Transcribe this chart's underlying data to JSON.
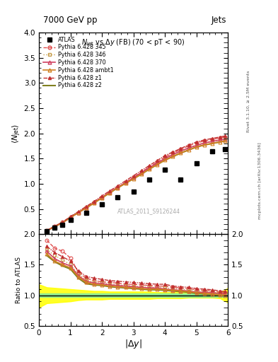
{
  "title_top": "7000 GeV pp",
  "title_top_right": "Jets",
  "plot_title": "N_{jet} vs #Delta y (FB) (70 < pT < 90)",
  "watermark": "ATLAS_2011_S9126244",
  "right_label_top": "Rivet 3.1.10, ≥ 2.5M events",
  "right_label_bottom": "mcplots.cern.ch [arXiv:1306.3436]",
  "atlas_x": [
    0.25,
    0.5,
    0.75,
    1.0,
    1.5,
    2.0,
    2.5,
    3.0,
    3.5,
    4.0,
    4.5,
    5.0,
    5.5,
    5.91
  ],
  "atlas_y": [
    0.06,
    0.13,
    0.18,
    0.28,
    0.42,
    0.59,
    0.73,
    0.85,
    1.08,
    1.28,
    1.08,
    1.4,
    1.65,
    1.68
  ],
  "py345_x": [
    0.25,
    0.5,
    0.75,
    1.0,
    1.25,
    1.5,
    1.75,
    2.0,
    2.25,
    2.5,
    2.75,
    3.0,
    3.25,
    3.5,
    3.75,
    4.0,
    4.25,
    4.5,
    4.75,
    5.0,
    5.25,
    5.5,
    5.75,
    5.91
  ],
  "py345_y": [
    0.07,
    0.16,
    0.24,
    0.34,
    0.43,
    0.53,
    0.63,
    0.73,
    0.83,
    0.93,
    1.03,
    1.13,
    1.23,
    1.33,
    1.43,
    1.53,
    1.61,
    1.68,
    1.75,
    1.81,
    1.85,
    1.88,
    1.91,
    1.93
  ],
  "py346_x": [
    0.25,
    0.5,
    0.75,
    1.0,
    1.25,
    1.5,
    1.75,
    2.0,
    2.25,
    2.5,
    2.75,
    3.0,
    3.25,
    3.5,
    3.75,
    4.0,
    4.25,
    4.5,
    4.75,
    5.0,
    5.25,
    5.5,
    5.75,
    5.91
  ],
  "py346_y": [
    0.07,
    0.15,
    0.23,
    0.33,
    0.43,
    0.52,
    0.62,
    0.72,
    0.82,
    0.92,
    1.02,
    1.12,
    1.21,
    1.31,
    1.41,
    1.5,
    1.57,
    1.64,
    1.71,
    1.77,
    1.81,
    1.84,
    1.87,
    1.88
  ],
  "py370_x": [
    0.25,
    0.5,
    0.75,
    1.0,
    1.25,
    1.5,
    1.75,
    2.0,
    2.25,
    2.5,
    2.75,
    3.0,
    3.25,
    3.5,
    3.75,
    4.0,
    4.25,
    4.5,
    4.75,
    5.0,
    5.25,
    5.5,
    5.75,
    5.91
  ],
  "py370_y": [
    0.07,
    0.15,
    0.23,
    0.33,
    0.43,
    0.52,
    0.63,
    0.73,
    0.83,
    0.93,
    1.02,
    1.12,
    1.22,
    1.32,
    1.41,
    1.5,
    1.58,
    1.65,
    1.71,
    1.76,
    1.81,
    1.84,
    1.87,
    1.88
  ],
  "pyambt1_x": [
    0.25,
    0.5,
    0.75,
    1.0,
    1.25,
    1.5,
    1.75,
    2.0,
    2.25,
    2.5,
    2.75,
    3.0,
    3.25,
    3.5,
    3.75,
    4.0,
    4.25,
    4.5,
    4.75,
    5.0,
    5.25,
    5.5,
    5.75,
    5.91
  ],
  "pyambt1_y": [
    0.07,
    0.15,
    0.23,
    0.33,
    0.43,
    0.52,
    0.62,
    0.72,
    0.82,
    0.92,
    1.01,
    1.1,
    1.19,
    1.29,
    1.38,
    1.47,
    1.54,
    1.61,
    1.67,
    1.73,
    1.77,
    1.8,
    1.83,
    1.85
  ],
  "pyz1_x": [
    0.25,
    0.5,
    0.75,
    1.0,
    1.25,
    1.5,
    1.75,
    2.0,
    2.25,
    2.5,
    2.75,
    3.0,
    3.25,
    3.5,
    3.75,
    4.0,
    4.25,
    4.5,
    4.75,
    5.0,
    5.25,
    5.5,
    5.75,
    5.91
  ],
  "pyz1_y": [
    0.07,
    0.16,
    0.24,
    0.35,
    0.45,
    0.55,
    0.65,
    0.76,
    0.86,
    0.96,
    1.06,
    1.16,
    1.26,
    1.36,
    1.46,
    1.56,
    1.63,
    1.7,
    1.77,
    1.83,
    1.87,
    1.9,
    1.93,
    1.95
  ],
  "pyz2_x": [
    0.25,
    0.5,
    0.75,
    1.0,
    1.25,
    1.5,
    1.75,
    2.0,
    2.25,
    2.5,
    2.75,
    3.0,
    3.25,
    3.5,
    3.75,
    4.0,
    4.25,
    4.5,
    4.75,
    5.0,
    5.25,
    5.5,
    5.75,
    5.91
  ],
  "pyz2_y": [
    0.07,
    0.15,
    0.23,
    0.33,
    0.43,
    0.52,
    0.62,
    0.72,
    0.82,
    0.92,
    1.01,
    1.1,
    1.19,
    1.29,
    1.38,
    1.47,
    1.54,
    1.61,
    1.67,
    1.73,
    1.77,
    1.8,
    1.83,
    1.85
  ],
  "ratio_x": [
    0.25,
    0.5,
    0.75,
    1.0,
    1.25,
    1.5,
    1.75,
    2.0,
    2.25,
    2.5,
    2.75,
    3.0,
    3.25,
    3.5,
    3.75,
    4.0,
    4.25,
    4.5,
    4.75,
    5.0,
    5.25,
    5.5,
    5.75,
    5.91
  ],
  "ratio_345_y": [
    1.9,
    1.77,
    1.72,
    1.61,
    1.38,
    1.28,
    1.24,
    1.22,
    1.21,
    1.2,
    1.18,
    1.18,
    1.17,
    1.16,
    1.15,
    1.15,
    1.13,
    1.12,
    1.11,
    1.09,
    1.08,
    1.07,
    1.05,
    1.04
  ],
  "ratio_346_y": [
    1.75,
    1.65,
    1.58,
    1.5,
    1.35,
    1.25,
    1.21,
    1.2,
    1.18,
    1.17,
    1.16,
    1.15,
    1.14,
    1.13,
    1.13,
    1.12,
    1.11,
    1.1,
    1.09,
    1.07,
    1.06,
    1.05,
    1.04,
    1.03
  ],
  "ratio_370_y": [
    1.72,
    1.6,
    1.53,
    1.48,
    1.32,
    1.23,
    1.2,
    1.19,
    1.17,
    1.16,
    1.15,
    1.14,
    1.13,
    1.12,
    1.12,
    1.1,
    1.09,
    1.08,
    1.07,
    1.05,
    1.05,
    1.04,
    1.03,
    1.02
  ],
  "ratio_ambt1_y": [
    1.68,
    1.56,
    1.5,
    1.45,
    1.3,
    1.21,
    1.18,
    1.17,
    1.15,
    1.14,
    1.13,
    1.12,
    1.11,
    1.1,
    1.1,
    1.09,
    1.08,
    1.07,
    1.06,
    1.04,
    1.03,
    1.02,
    1.01,
    1.0
  ],
  "ratio_z1_y": [
    1.8,
    1.7,
    1.63,
    1.56,
    1.4,
    1.31,
    1.28,
    1.26,
    1.24,
    1.23,
    1.22,
    1.21,
    1.2,
    1.19,
    1.18,
    1.18,
    1.15,
    1.14,
    1.13,
    1.11,
    1.1,
    1.09,
    1.07,
    1.06
  ],
  "ratio_z2_y": [
    1.65,
    1.55,
    1.48,
    1.43,
    1.28,
    1.19,
    1.17,
    1.16,
    1.14,
    1.13,
    1.12,
    1.11,
    1.1,
    1.09,
    1.09,
    1.08,
    1.07,
    1.06,
    1.05,
    1.03,
    1.02,
    1.01,
    1.0,
    0.99
  ],
  "band_x": [
    0.0,
    0.25,
    0.5,
    0.75,
    1.0,
    1.25,
    1.5,
    1.75,
    2.0,
    2.25,
    2.5,
    2.75,
    3.0,
    3.25,
    3.5,
    3.75,
    4.0,
    4.25,
    4.5,
    4.75,
    5.0,
    5.25,
    5.5,
    5.75,
    6.0
  ],
  "band_green_lo": [
    0.97,
    0.97,
    0.97,
    0.97,
    0.97,
    0.97,
    0.97,
    0.97,
    0.97,
    0.97,
    0.97,
    0.97,
    0.97,
    0.97,
    0.97,
    0.97,
    0.97,
    0.97,
    0.97,
    0.97,
    0.97,
    0.97,
    0.97,
    0.97,
    0.97
  ],
  "band_green_hi": [
    1.03,
    1.03,
    1.03,
    1.03,
    1.03,
    1.03,
    1.03,
    1.03,
    1.03,
    1.03,
    1.03,
    1.03,
    1.03,
    1.03,
    1.03,
    1.03,
    1.03,
    1.03,
    1.03,
    1.03,
    1.03,
    1.03,
    1.03,
    1.03,
    1.03
  ],
  "band_yellow_lo": [
    0.8,
    0.87,
    0.88,
    0.89,
    0.9,
    0.92,
    0.93,
    0.93,
    0.93,
    0.94,
    0.94,
    0.94,
    0.94,
    0.94,
    0.94,
    0.95,
    0.95,
    0.95,
    0.95,
    0.96,
    0.96,
    0.96,
    0.96,
    0.95,
    0.88
  ],
  "band_yellow_hi": [
    1.18,
    1.13,
    1.12,
    1.11,
    1.1,
    1.09,
    1.08,
    1.07,
    1.07,
    1.06,
    1.06,
    1.06,
    1.06,
    1.06,
    1.06,
    1.05,
    1.05,
    1.05,
    1.05,
    1.04,
    1.04,
    1.04,
    1.04,
    1.05,
    1.12
  ],
  "color_345": "#e05050",
  "color_346": "#c8a050",
  "color_370": "#d04060",
  "color_ambt1": "#d08020",
  "color_z1": "#c03030",
  "color_z2": "#808020",
  "main_ylim": [
    0,
    4
  ],
  "main_yticks": [
    0.5,
    1.0,
    1.5,
    2.0,
    2.5,
    3.0,
    3.5,
    4.0
  ],
  "ratio_ylim": [
    0.5,
    2.0
  ],
  "ratio_yticks": [
    0.5,
    1.0,
    1.5,
    2.0
  ],
  "xlim": [
    0,
    6
  ]
}
